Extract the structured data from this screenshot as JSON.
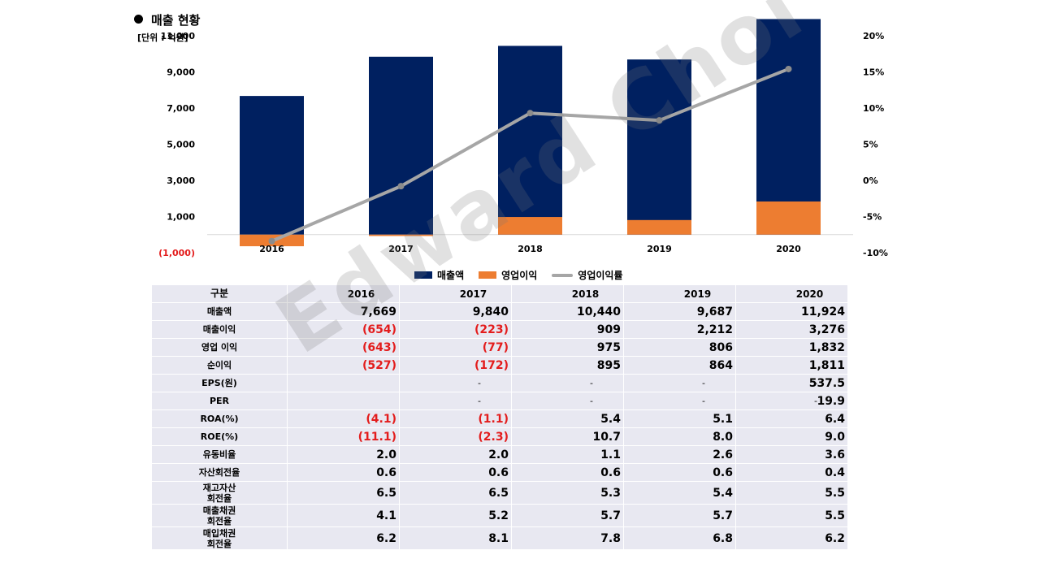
{
  "title": "매출 현황",
  "unit": "[단위 : 억원]",
  "watermark": "Edward Choi",
  "chart_data": {
    "type": "bar",
    "categories": [
      "2016",
      "2017",
      "2018",
      "2019",
      "2020"
    ],
    "series": [
      {
        "name": "매출액",
        "type": "bar",
        "values": [
          7669,
          9840,
          10440,
          9687,
          11924
        ],
        "color": "#002060"
      },
      {
        "name": "영업이익",
        "type": "bar",
        "values": [
          -643,
          -77,
          975,
          806,
          1832
        ],
        "color": "#ed7d31"
      },
      {
        "name": "영업이익률",
        "type": "line",
        "axis": "right",
        "values": [
          -8.4,
          -0.8,
          9.3,
          8.3,
          15.4
        ],
        "color": "#a6a6a6"
      }
    ],
    "y_left": {
      "range": [
        -1000,
        11000
      ],
      "ticks": [
        -1000,
        1000,
        3000,
        5000,
        7000,
        9000,
        11000
      ],
      "tick_labels": [
        "(1,000)",
        "1,000",
        "3,000",
        "5,000",
        "7,000",
        "9,000",
        "11,000"
      ]
    },
    "y_right": {
      "range": [
        -10,
        20
      ],
      "ticks": [
        -10,
        -5,
        0,
        5,
        10,
        15,
        20
      ],
      "tick_labels": [
        "-10%",
        "-5%",
        "0%",
        "5%",
        "10%",
        "15%",
        "20%"
      ]
    },
    "legend": "bottom-center"
  },
  "legend_labels": [
    "매출액",
    "영업이익",
    "영업이익률"
  ],
  "table": {
    "header": {
      "label": "구분",
      "years": [
        "2016",
        "2017",
        "2018",
        "2019",
        "2020"
      ]
    },
    "rows": [
      {
        "label": "매출액",
        "values": [
          "7,669",
          "9,840",
          "10,440",
          "9,687",
          "11,924"
        ]
      },
      {
        "label": "매출이익",
        "values": [
          "(654)",
          "(223)",
          "909",
          "2,212",
          "3,276"
        ]
      },
      {
        "label": "영업 이익",
        "values": [
          "(643)",
          "(77)",
          "975",
          "806",
          "1,832"
        ]
      },
      {
        "label": "순이익",
        "values": [
          "(527)",
          "(172)",
          "895",
          "864",
          "1,811"
        ]
      },
      {
        "label": "EPS(원)",
        "values": [
          "-",
          "-",
          "-",
          "-",
          "537.5"
        ]
      },
      {
        "label": "PER",
        "values": [
          "-",
          "-",
          "-",
          "-",
          "19.9"
        ]
      },
      {
        "label": "ROA(%)",
        "values": [
          "(4.1)",
          "(1.1)",
          "5.4",
          "5.1",
          "6.4"
        ]
      },
      {
        "label": "ROE(%)",
        "values": [
          "(11.1)",
          "(2.3)",
          "10.7",
          "8.0",
          "9.0"
        ]
      },
      {
        "label": "유동비율",
        "values": [
          "2.0",
          "2.0",
          "1.1",
          "2.6",
          "3.6"
        ]
      },
      {
        "label": "자산회전율",
        "values": [
          "0.6",
          "0.6",
          "0.6",
          "0.6",
          "0.4"
        ]
      },
      {
        "label": "재고자산\n회전율",
        "values": [
          "6.5",
          "6.5",
          "5.3",
          "5.4",
          "5.5"
        ]
      },
      {
        "label": "매출채권\n회전율",
        "values": [
          "4.1",
          "5.2",
          "5.7",
          "5.7",
          "5.5"
        ]
      },
      {
        "label": "매입채권\n회전율",
        "values": [
          "6.2",
          "8.1",
          "7.8",
          "6.8",
          "6.2"
        ]
      }
    ]
  }
}
